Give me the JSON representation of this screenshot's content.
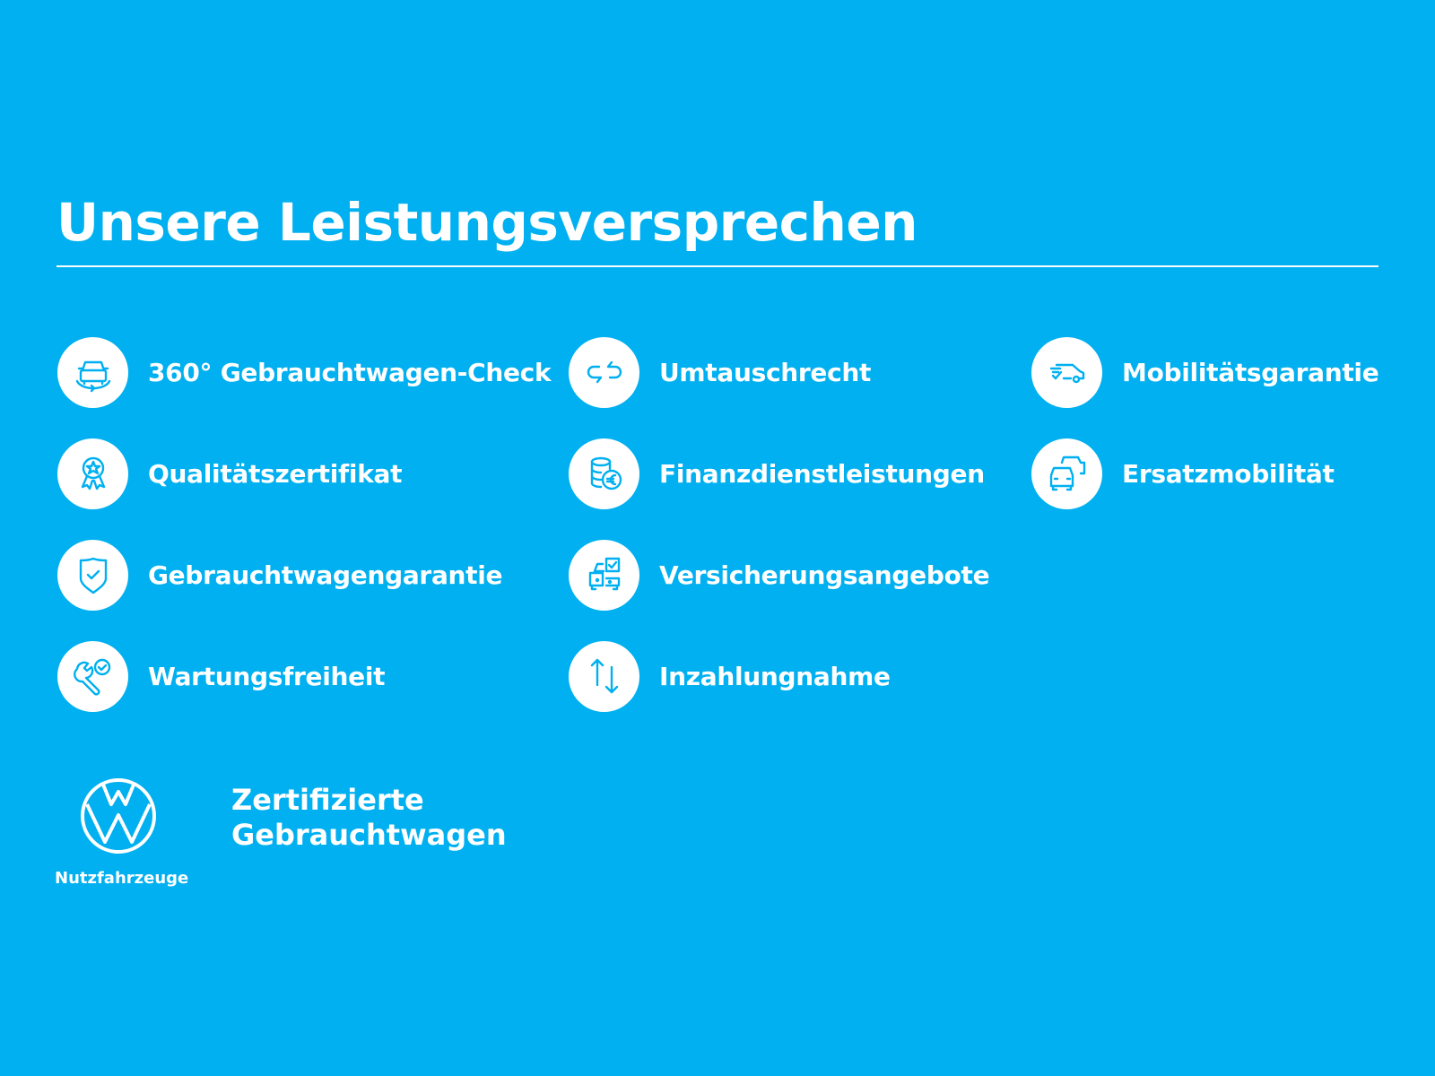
{
  "header": {
    "title": "Unsere Leistungsversprechen"
  },
  "items": [
    {
      "label": "360° Gebrauchtwagen-Check",
      "icon": "car-360-icon"
    },
    {
      "label": "Qualitätszertifikat",
      "icon": "award-ribbon-icon"
    },
    {
      "label": "Gebrauchtwagengarantie",
      "icon": "shield-check-icon"
    },
    {
      "label": "Wartungsfreiheit",
      "icon": "wrench-check-icon"
    },
    {
      "label": "Umtauschrecht",
      "icon": "exchange-arrows-icon"
    },
    {
      "label": "Finanzdienstleistungen",
      "icon": "coins-euro-icon"
    },
    {
      "label": "Versicherungsangebote",
      "icon": "car-checklist-icon"
    },
    {
      "label": "Inzahlungnahme",
      "icon": "up-down-arrows-icon"
    },
    {
      "label": "Mobilitätsgarantie",
      "icon": "van-check-icon"
    },
    {
      "label": "Ersatzmobilität",
      "icon": "two-cars-icon"
    }
  ],
  "footer": {
    "brand_subtitle": "Nutzfahrzeuge",
    "claim_line1": "Zertifizierte",
    "claim_line2": "Gebrauchtwagen"
  },
  "colors": {
    "background": "#00b0f0",
    "foreground": "#ffffff"
  }
}
